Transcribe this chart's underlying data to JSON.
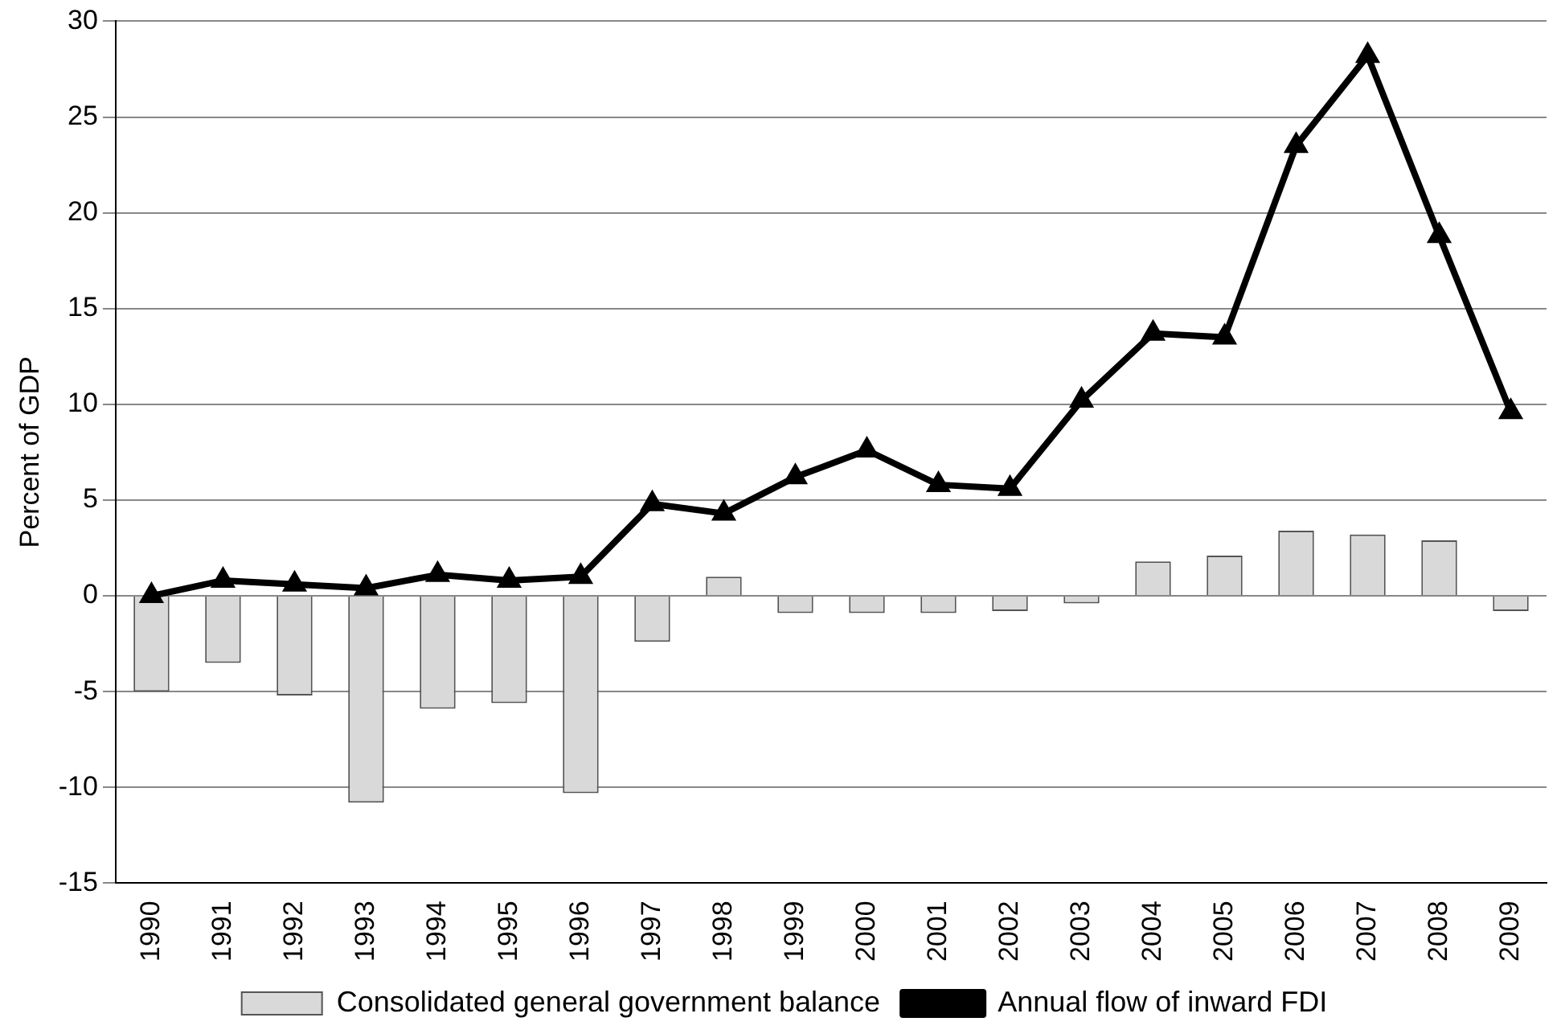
{
  "chart_data": {
    "type": "bar",
    "ylabel": "Percent of GDP",
    "categories": [
      "1990",
      "1991",
      "1992",
      "1993",
      "1994",
      "1995",
      "1996",
      "1997",
      "1998",
      "1999",
      "2000",
      "2001",
      "2002",
      "2003",
      "2004",
      "2005",
      "2006",
      "2007",
      "2008",
      "2009"
    ],
    "series": [
      {
        "name": "Consolidated general government balance",
        "color": "#d9d9d9",
        "values": [
          -5.0,
          -3.5,
          -5.2,
          -10.8,
          -5.9,
          -5.6,
          -10.3,
          -2.4,
          1.0,
          -0.9,
          -0.9,
          -0.9,
          -0.8,
          -0.4,
          1.8,
          2.1,
          3.4,
          3.2,
          2.9,
          -0.8
        ]
      },
      {
        "name": "Annual flow of inward FDI",
        "type": "line",
        "color": "#000000",
        "marker": "triangle",
        "values": [
          0,
          0.8,
          0.6,
          0.4,
          1.1,
          0.8,
          1.0,
          4.8,
          4.3,
          6.2,
          7.6,
          5.8,
          5.6,
          10.2,
          13.7,
          13.5,
          23.5,
          28.2,
          18.8,
          9.6
        ]
      }
    ],
    "ylim": [
      -15,
      30
    ],
    "yticks": [
      -15,
      -10,
      -5,
      0,
      5,
      10,
      15,
      20,
      25,
      30
    ],
    "grid": "y",
    "legend": "bottom"
  }
}
